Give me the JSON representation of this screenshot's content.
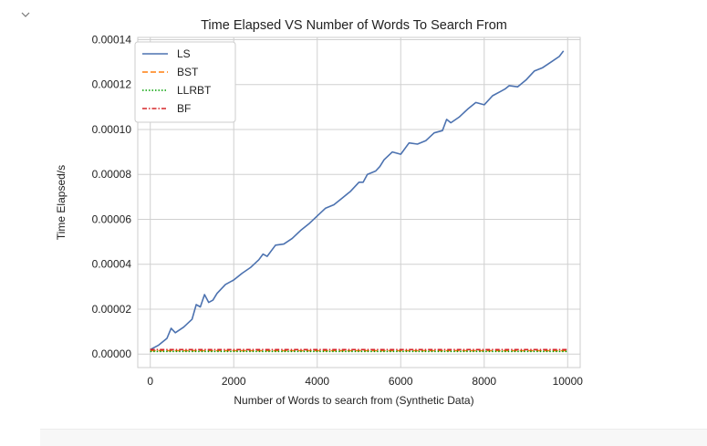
{
  "cell": {
    "toggle_icon": "chevron-down-icon"
  },
  "colors": {
    "LS": "#4c72b0",
    "BST": "#ff7f0e",
    "LLRBT": "#00a000",
    "BF": "#d62728",
    "grid": "#d0d0d0",
    "axes_edge": "#cccccc"
  },
  "chart_data": {
    "type": "line",
    "title": "Time Elapsed VS Number of Words To Search From",
    "xlabel": "Number of Words to search from (Synthetic Data)",
    "ylabel": "Time Elapsed/s",
    "xlim": [
      -300,
      10300
    ],
    "ylim": [
      -6e-06,
      0.000141
    ],
    "xticks": [
      0,
      2000,
      4000,
      6000,
      8000,
      10000
    ],
    "xtick_labels": [
      "0",
      "2000",
      "4000",
      "6000",
      "8000",
      "10000"
    ],
    "yticks": [
      0.0,
      2e-05,
      4e-05,
      6e-05,
      8e-05,
      0.0001,
      0.00012,
      0.00014
    ],
    "ytick_labels": [
      "0.00000",
      "0.00002",
      "0.00004",
      "0.00006",
      "0.00008",
      "0.00010",
      "0.00012",
      "0.00014"
    ],
    "grid": true,
    "legend_position": "top-left",
    "series": [
      {
        "name": "LS",
        "style": "solid",
        "x": [
          0,
          200,
          400,
          500,
          600,
          800,
          1000,
          1100,
          1200,
          1300,
          1400,
          1500,
          1600,
          1800,
          2000,
          2200,
          2400,
          2600,
          2700,
          2800,
          3000,
          3200,
          3400,
          3600,
          3800,
          4000,
          4200,
          4400,
          4600,
          4800,
          5000,
          5100,
          5200,
          5400,
          5500,
          5600,
          5800,
          6000,
          6200,
          6400,
          6600,
          6800,
          7000,
          7100,
          7200,
          7400,
          7600,
          7800,
          8000,
          8200,
          8400,
          8500,
          8600,
          8800,
          9000,
          9200,
          9400,
          9600,
          9800,
          9900
        ],
        "values": [
          2e-06,
          4e-06,
          7e-06,
          1.15e-05,
          9.5e-06,
          1.2e-05,
          1.55e-05,
          2.2e-05,
          2.1e-05,
          2.65e-05,
          2.3e-05,
          2.4e-05,
          2.7e-05,
          3.1e-05,
          3.3e-05,
          3.6e-05,
          3.85e-05,
          4.2e-05,
          4.45e-05,
          4.35e-05,
          4.85e-05,
          4.9e-05,
          5.15e-05,
          5.5e-05,
          5.8e-05,
          6.15e-05,
          6.5e-05,
          6.65e-05,
          6.95e-05,
          7.25e-05,
          7.65e-05,
          7.65e-05,
          8e-05,
          8.15e-05,
          8.35e-05,
          8.65e-05,
          9e-05,
          8.9e-05,
          9.4e-05,
          9.35e-05,
          9.5e-05,
          9.85e-05,
          9.95e-05,
          0.0001045,
          0.000103,
          0.0001055,
          0.000109,
          0.000112,
          0.000111,
          0.000115,
          0.000117,
          0.000118,
          0.0001195,
          0.000119,
          0.000122,
          0.000126,
          0.0001275,
          0.00013,
          0.0001325,
          0.000135
        ]
      },
      {
        "name": "BST",
        "style": "dashed",
        "x": [
          0,
          10000
        ],
        "values": [
          1.5e-06,
          1.5e-06
        ]
      },
      {
        "name": "LLRBT",
        "style": "dotted",
        "x": [
          0,
          10000
        ],
        "values": [
          1.2e-06,
          1.2e-06
        ]
      },
      {
        "name": "BF",
        "style": "dashdot",
        "x": [
          0,
          10000
        ],
        "values": [
          2e-06,
          2e-06
        ]
      }
    ]
  }
}
